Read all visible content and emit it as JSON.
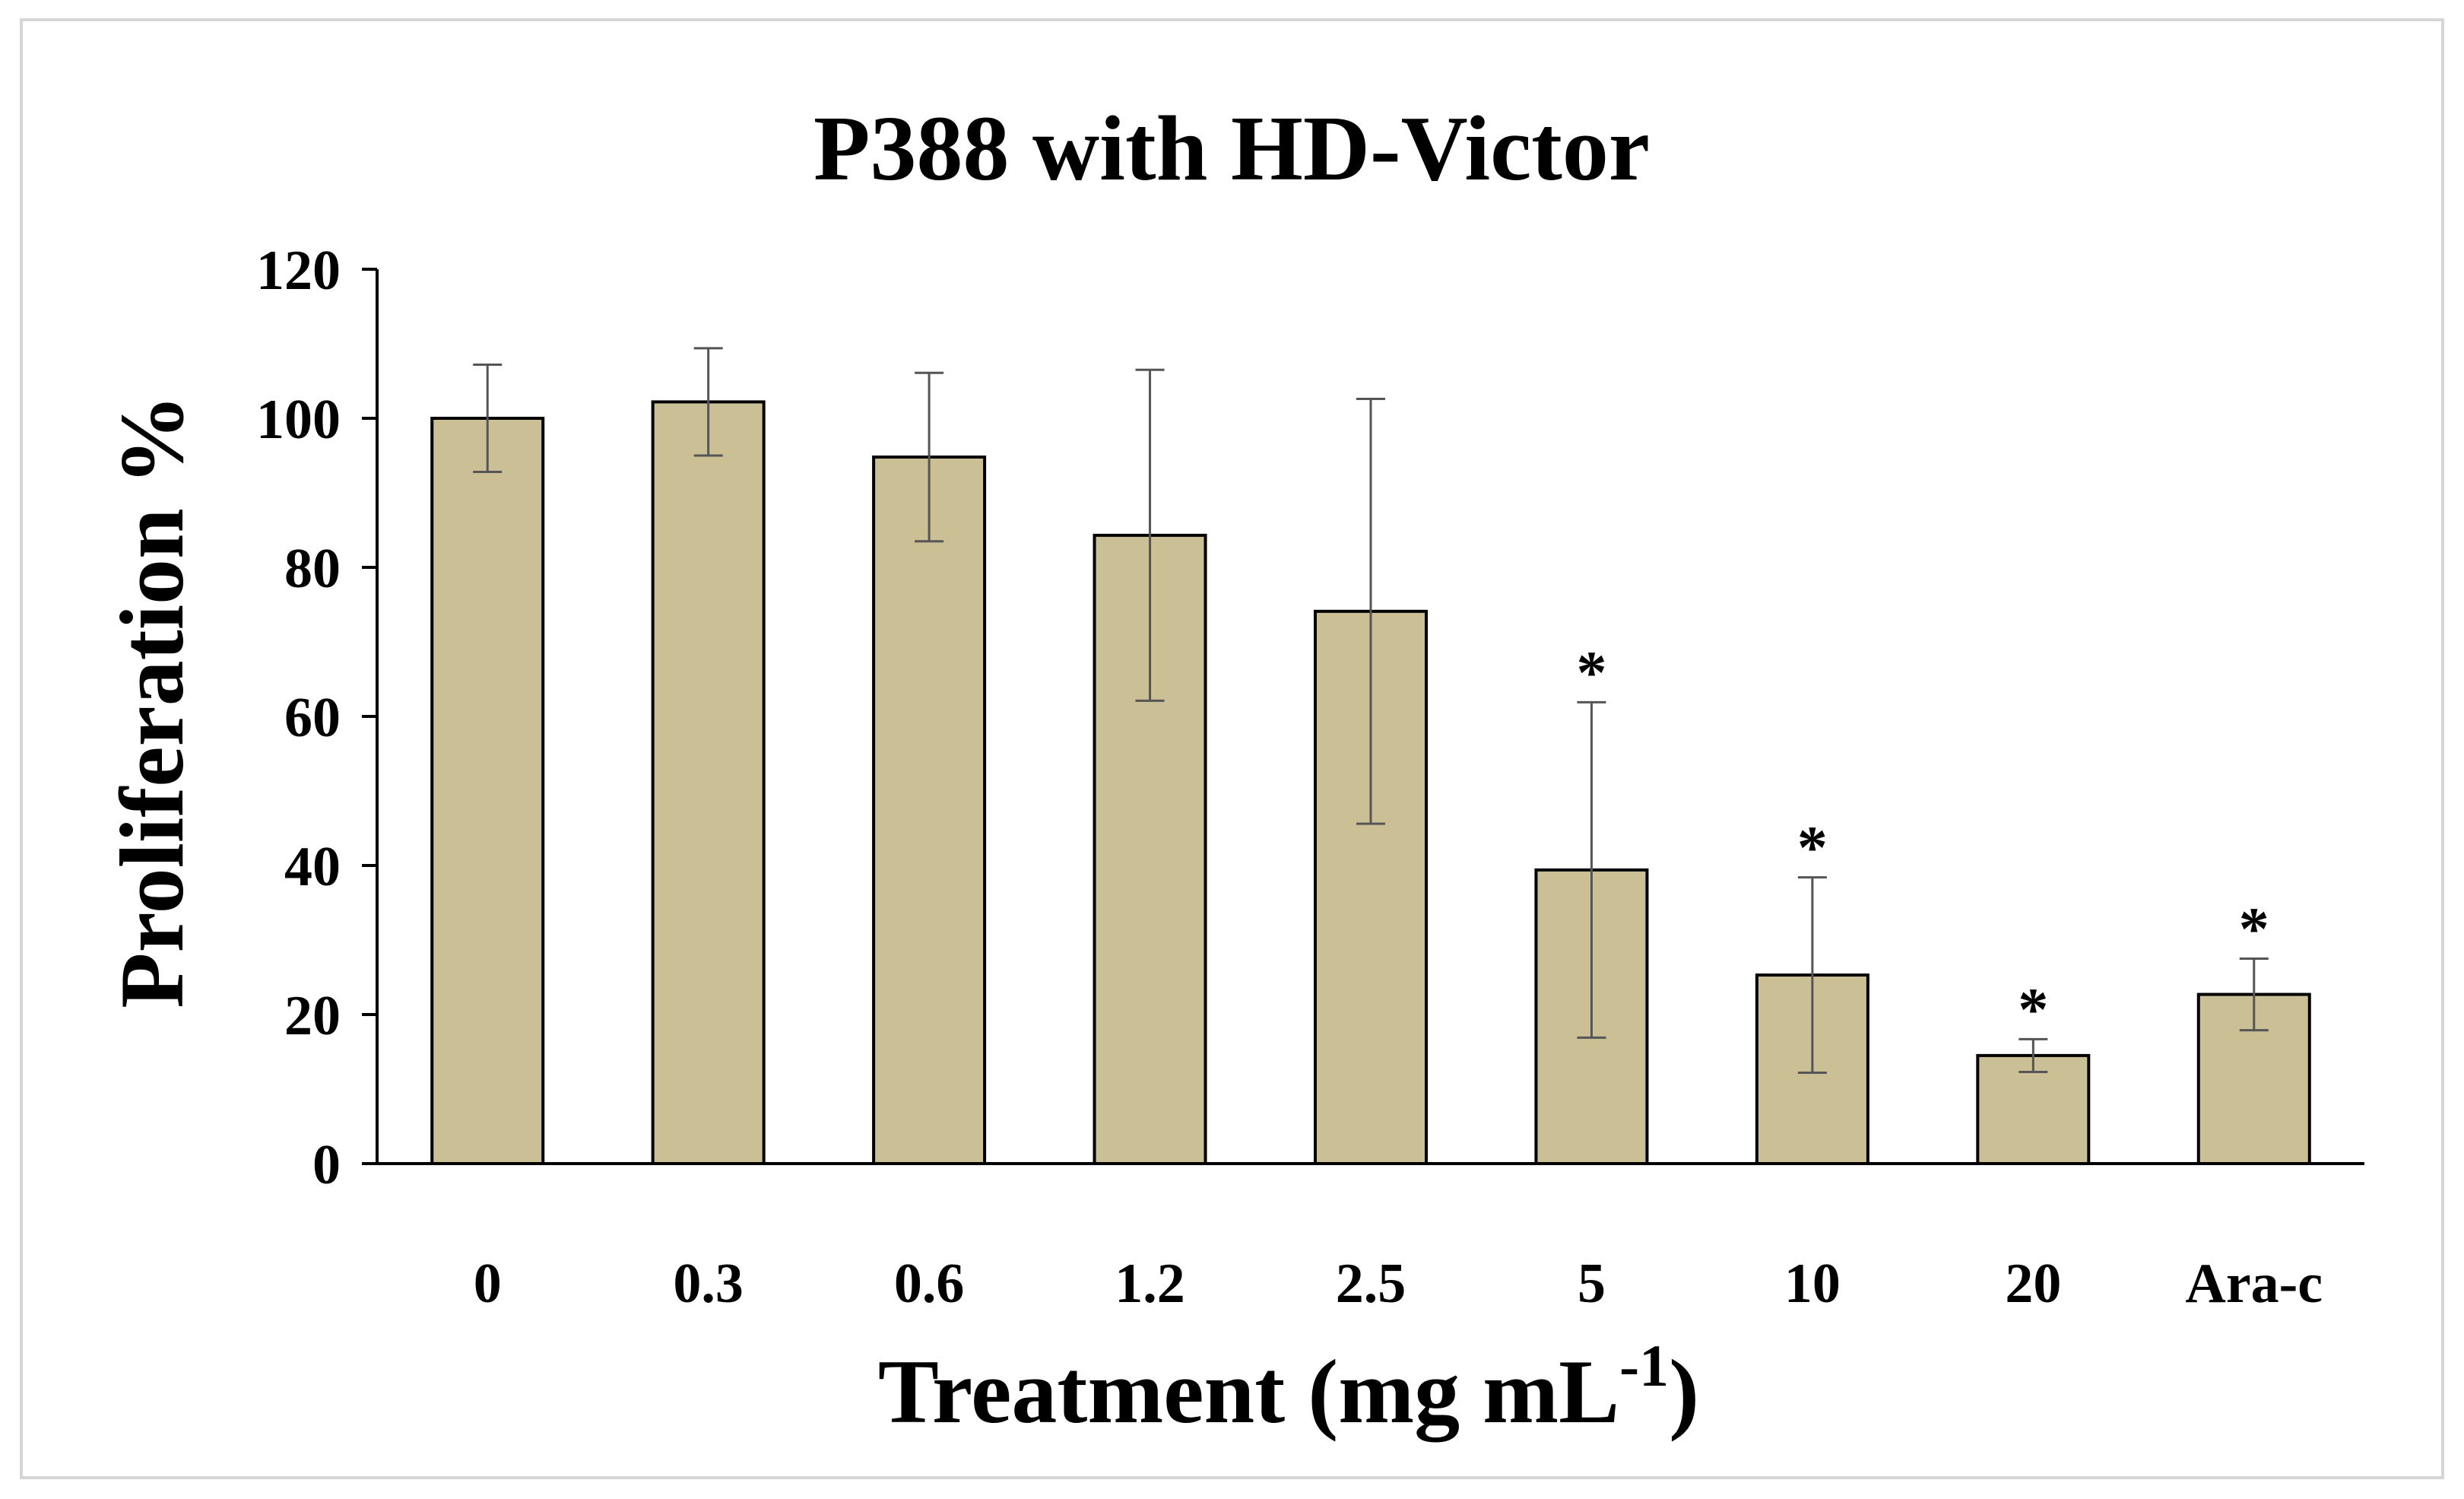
{
  "chart_data": {
    "type": "bar",
    "title": "P388 with HD-Victor",
    "xlabel_main": "Treatment (mg mL",
    "xlabel_sup": "-1",
    "xlabel_close": ")",
    "ylabel": "Proliferation %",
    "categories": [
      "0",
      "0.3",
      "0.6",
      "1.2",
      "2.5",
      "5",
      "10",
      "20",
      "Ara-c"
    ],
    "values": [
      100,
      102.2,
      94.8,
      84.3,
      74.1,
      39.4,
      25.3,
      14.5,
      22.7
    ],
    "error": [
      7.2,
      7.2,
      11.3,
      22.2,
      28.5,
      22.5,
      13.1,
      2.2,
      4.8
    ],
    "significance": [
      "",
      "",
      "",
      "",
      "",
      "*",
      "*",
      "*",
      "*"
    ],
    "ylim": [
      0,
      120
    ],
    "yticks": [
      "0",
      "20",
      "40",
      "60",
      "80",
      "100",
      "120"
    ],
    "bar_color": "#cbbf96",
    "bar_edge_color": "#000000",
    "error_color": "#555555",
    "grid": false
  }
}
